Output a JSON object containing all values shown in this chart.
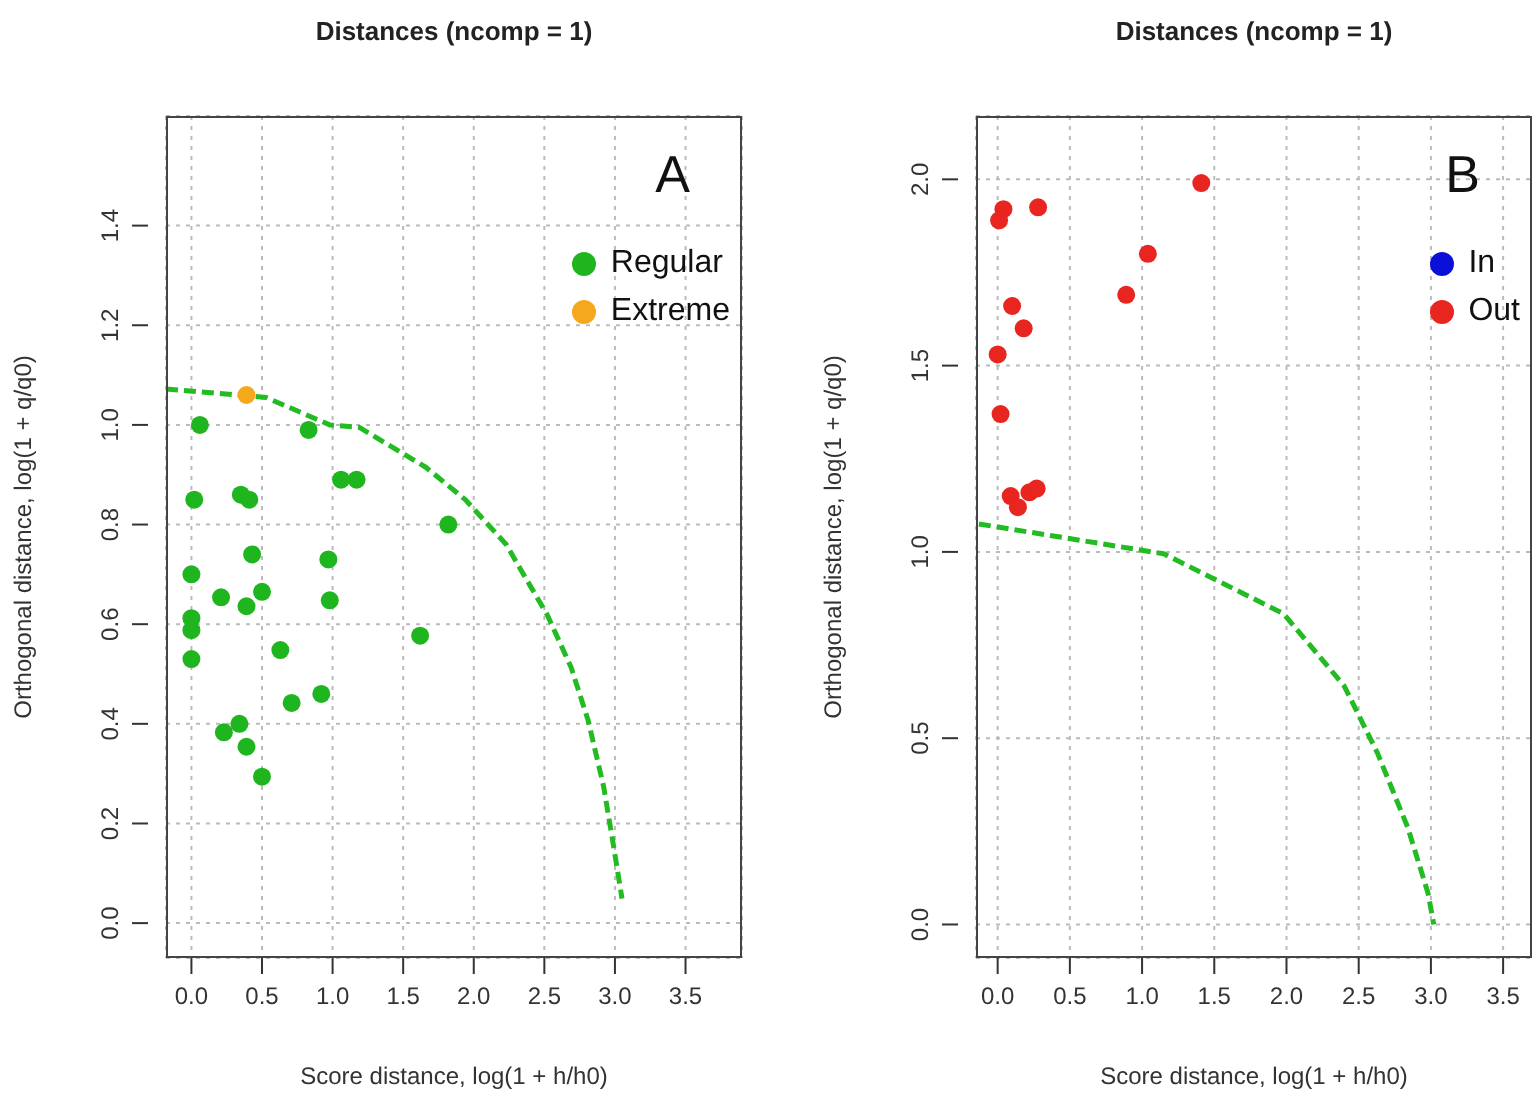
{
  "chart_data": [
    {
      "type": "scatter",
      "title": "Distances (ncomp = 1)",
      "xlabel": "Score distance, log(1 + h/h0)",
      "ylabel": "Orthogonal distance, log(1 + q/q0)",
      "annotations": [
        "A"
      ],
      "marker": "circle",
      "grid": true,
      "legend": "top right",
      "xlim": [
        -0.18,
        3.9
      ],
      "ylim": [
        -0.07,
        1.62
      ],
      "xticks": [
        {
          "value": 0,
          "label": "0.0"
        },
        0.5,
        {
          "value": 1,
          "label": "1.0"
        },
        1.5,
        {
          "value": 2,
          "label": "2.0"
        },
        2.5,
        {
          "value": 3,
          "label": "3.0"
        },
        3.5
      ],
      "yticks": [
        {
          "value": 0,
          "label": "0.0"
        },
        0.2,
        0.4,
        0.6,
        0.8,
        {
          "value": 1,
          "label": "1.0"
        },
        1.2,
        1.4
      ],
      "series": [
        {
          "name": "Regular",
          "color": "#1fb51f",
          "x": [
            0.06,
            0.83,
            0.02,
            0.35,
            0.41,
            1.06,
            1.17,
            1.82,
            0,
            0.43,
            0.97,
            0.21,
            0.5,
            0.39,
            0.98,
            0,
            0,
            0,
            0.63,
            1.62,
            0.92,
            0.71,
            0.23,
            0.34,
            0.39,
            0.5
          ],
          "values": [
            1.0,
            0.99,
            0.85,
            0.86,
            0.85,
            0.89,
            0.89,
            0.8,
            0.7,
            0.74,
            0.73,
            0.654,
            0.665,
            0.636,
            0.648,
            0.612,
            0.588,
            0.53,
            0.548,
            0.577,
            0.46,
            0.442,
            0.383,
            0.4,
            0.354,
            0.294
          ]
        },
        {
          "name": "Extreme",
          "color": "#f5a81c",
          "x": [
            0.39
          ],
          "values": [
            1.06
          ]
        },
        {
          "type": "line",
          "color": "#22bb22",
          "line_style": "dashed",
          "marker": "none",
          "x": [
            -0.18,
            0.53,
            0.98,
            1.19,
            1.66,
            1.94,
            2.23,
            2.33,
            2.52,
            2.69,
            2.81,
            2.92,
            2.99,
            3.05
          ],
          "values": [
            1.072,
            1.055,
            1.0,
            0.995,
            0.915,
            0.85,
            0.76,
            0.711,
            0.619,
            0.513,
            0.407,
            0.274,
            0.155,
            0.049
          ]
        }
      ]
    },
    {
      "type": "scatter",
      "title": "Distances (ncomp = 1)",
      "xlabel": "Score distance, log(1 + h/h0)",
      "ylabel": "Orthogonal distance, log(1 + q/q0)",
      "annotations": [
        "B"
      ],
      "marker": "circle",
      "grid": true,
      "legend": "top right",
      "xlim": [
        -0.15,
        3.7
      ],
      "ylim": [
        -0.09,
        2.17
      ],
      "xticks": [
        {
          "value": 0,
          "label": "0.0"
        },
        0.5,
        {
          "value": 1,
          "label": "1.0"
        },
        1.5,
        {
          "value": 2,
          "label": "2.0"
        },
        2.5,
        {
          "value": 3,
          "label": "3.0"
        },
        3.5
      ],
      "yticks": [
        {
          "value": 0,
          "label": "0.0"
        },
        0.5,
        {
          "value": 1,
          "label": "1.0"
        },
        1.5,
        {
          "value": 2,
          "label": "2.0"
        }
      ],
      "series": [
        {
          "name": "In",
          "color": "#0a10d8"
        },
        {
          "name": "Out",
          "color": "#e8251f",
          "x": [
            1.41,
            0.04,
            0.01,
            0.28,
            1.04,
            0.89,
            0.1,
            0.18,
            0,
            0.02,
            0.09,
            0.14,
            0.22,
            0.27
          ],
          "values": [
            1.99,
            1.92,
            1.89,
            1.925,
            1.8,
            1.69,
            1.66,
            1.6,
            1.53,
            1.37,
            1.15,
            1.12,
            1.16,
            1.17
          ]
        },
        {
          "type": "line",
          "color": "#22bb22",
          "line_style": "dashed",
          "marker": "none",
          "x": [
            -0.13,
            1.15,
            1.98,
            2.4,
            2.63,
            2.84,
            2.98,
            3.02
          ],
          "values": [
            1.075,
            0.995,
            0.834,
            0.64,
            0.46,
            0.26,
            0.084,
            0.0
          ]
        }
      ]
    }
  ]
}
